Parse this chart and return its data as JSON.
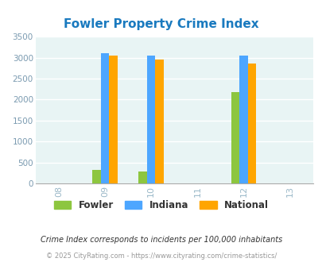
{
  "title": "Fowler Property Crime Index",
  "years": [
    2008,
    2009,
    2010,
    2011,
    2012,
    2013
  ],
  "bar_groups": {
    "2009": {
      "fowler": 330,
      "indiana": 3100,
      "national": 3040
    },
    "2010": {
      "fowler": 290,
      "indiana": 3040,
      "national": 2950
    },
    "2012": {
      "fowler": 2175,
      "indiana": 3040,
      "national": 2855
    }
  },
  "bar_width": 0.18,
  "colors": {
    "fowler": "#8dc63f",
    "indiana": "#4da6ff",
    "national": "#ffa500"
  },
  "ylim": [
    0,
    3500
  ],
  "yticks": [
    0,
    500,
    1000,
    1500,
    2000,
    2500,
    3000,
    3500
  ],
  "xtick_labels": [
    "08",
    "09",
    "10",
    "11",
    "12",
    "13"
  ],
  "legend_labels": [
    "Fowler",
    "Indiana",
    "National"
  ],
  "footnote1": "Crime Index corresponds to incidents per 100,000 inhabitants",
  "footnote2": "© 2025 CityRating.com - https://www.cityrating.com/crime-statistics/",
  "bg_color": "#e8f4f4",
  "title_color": "#1a7abf",
  "axis_color": "#9ab8c8",
  "ytick_color": "#7a9ab0",
  "grid_color": "#ffffff"
}
